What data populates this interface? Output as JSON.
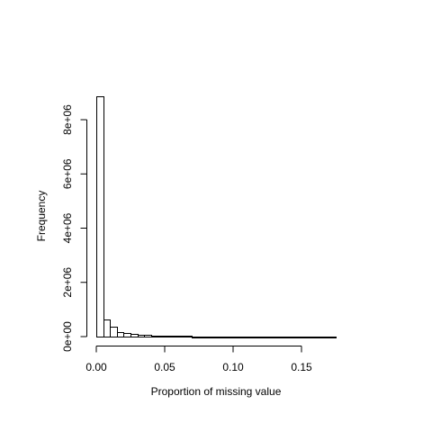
{
  "chart_data": {
    "type": "bar",
    "title": "",
    "xlabel": "Proportion of missing value",
    "ylabel": "Frequency",
    "xlim": [
      0,
      0.175
    ],
    "ylim": [
      0,
      8800000
    ],
    "bin_width": 0.005,
    "bins": [
      {
        "x0": 0.0,
        "x1": 0.005,
        "value": 8850000
      },
      {
        "x0": 0.005,
        "x1": 0.01,
        "value": 620000
      },
      {
        "x0": 0.01,
        "x1": 0.015,
        "value": 380000
      },
      {
        "x0": 0.015,
        "x1": 0.02,
        "value": 170000
      },
      {
        "x0": 0.02,
        "x1": 0.025,
        "value": 120000
      },
      {
        "x0": 0.025,
        "x1": 0.03,
        "value": 100000
      },
      {
        "x0": 0.03,
        "x1": 0.035,
        "value": 75000
      },
      {
        "x0": 0.035,
        "x1": 0.04,
        "value": 60000
      },
      {
        "x0": 0.04,
        "x1": 0.045,
        "value": 45000
      },
      {
        "x0": 0.045,
        "x1": 0.05,
        "value": 35000
      },
      {
        "x0": 0.05,
        "x1": 0.055,
        "value": 28000
      },
      {
        "x0": 0.055,
        "x1": 0.06,
        "value": 24000
      },
      {
        "x0": 0.06,
        "x1": 0.065,
        "value": 20000
      },
      {
        "x0": 0.065,
        "x1": 0.07,
        "value": 18000
      },
      {
        "x0": 0.07,
        "x1": 0.075,
        "value": 16000
      },
      {
        "x0": 0.075,
        "x1": 0.08,
        "value": 14000
      },
      {
        "x0": 0.08,
        "x1": 0.085,
        "value": 13000
      },
      {
        "x0": 0.085,
        "x1": 0.09,
        "value": 12000
      },
      {
        "x0": 0.09,
        "x1": 0.095,
        "value": 11000
      },
      {
        "x0": 0.095,
        "x1": 0.1,
        "value": 10000
      },
      {
        "x0": 0.1,
        "x1": 0.105,
        "value": 9000
      },
      {
        "x0": 0.105,
        "x1": 0.11,
        "value": 8500
      },
      {
        "x0": 0.11,
        "x1": 0.115,
        "value": 8000
      },
      {
        "x0": 0.115,
        "x1": 0.12,
        "value": 7500
      },
      {
        "x0": 0.12,
        "x1": 0.125,
        "value": 7000
      },
      {
        "x0": 0.125,
        "x1": 0.13,
        "value": 6500
      },
      {
        "x0": 0.13,
        "x1": 0.135,
        "value": 6000
      },
      {
        "x0": 0.135,
        "x1": 0.14,
        "value": 5500
      },
      {
        "x0": 0.14,
        "x1": 0.145,
        "value": 5000
      },
      {
        "x0": 0.145,
        "x1": 0.15,
        "value": 4500
      },
      {
        "x0": 0.15,
        "x1": 0.155,
        "value": 4000
      },
      {
        "x0": 0.155,
        "x1": 0.16,
        "value": 3500
      },
      {
        "x0": 0.16,
        "x1": 0.165,
        "value": 3000
      },
      {
        "x0": 0.165,
        "x1": 0.17,
        "value": 2500
      },
      {
        "x0": 0.17,
        "x1": 0.175,
        "value": 2000
      }
    ],
    "x_ticks": [
      {
        "value": 0.0,
        "label": "0.00"
      },
      {
        "value": 0.05,
        "label": "0.05"
      },
      {
        "value": 0.1,
        "label": "0.10"
      },
      {
        "value": 0.15,
        "label": "0.15"
      }
    ],
    "y_ticks": [
      {
        "value": 0,
        "label": "0e+00"
      },
      {
        "value": 2000000,
        "label": "2e+06"
      },
      {
        "value": 4000000,
        "label": "4e+06"
      },
      {
        "value": 6000000,
        "label": "6e+06"
      },
      {
        "value": 8000000,
        "label": "8e+06"
      }
    ],
    "grid": false,
    "colors": {
      "bar_fill": "#ffffff",
      "bar_stroke": "#000000",
      "axis": "#000000"
    }
  }
}
